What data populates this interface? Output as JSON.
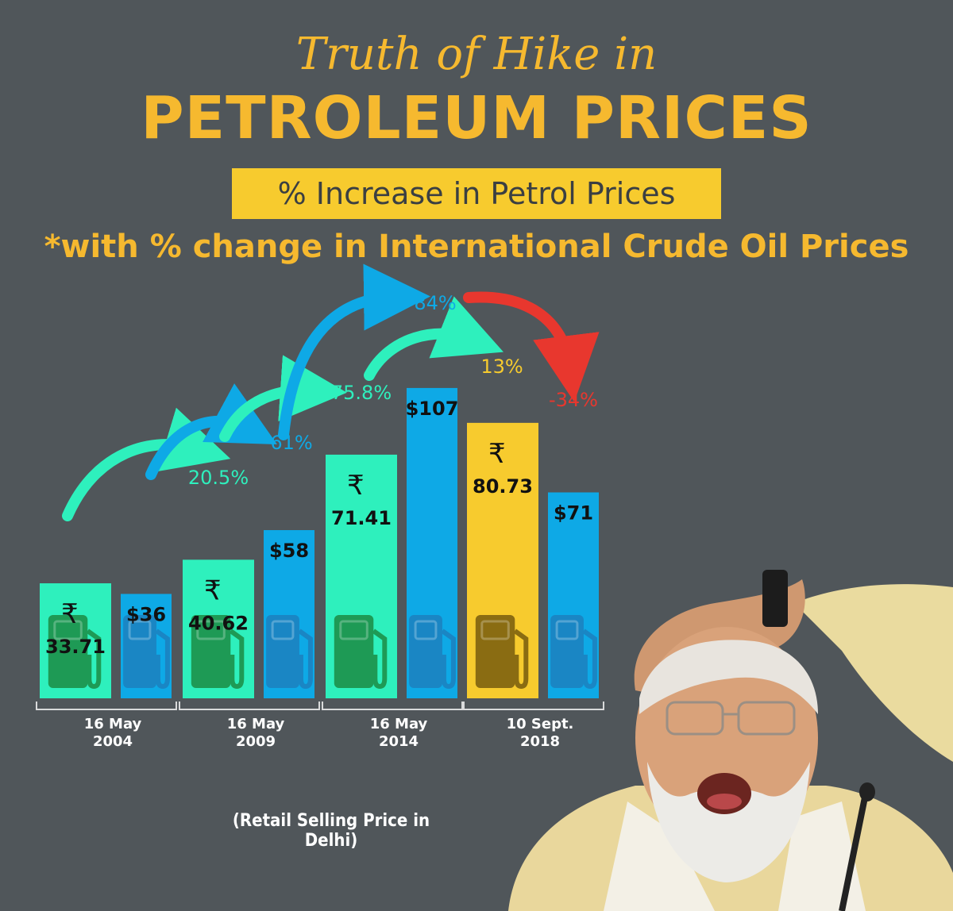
{
  "header": {
    "title_line1": "Truth of Hike in",
    "title_line2": "PETROLEUM PRICES",
    "subtitle": "% Increase in Petrol Prices",
    "subtitle2": "*with % change in International Crude Oil Prices"
  },
  "footnote": "(Retail Selling Price in Delhi)",
  "colors": {
    "background": "#50565a",
    "petrol_bar": "#2ef0bd",
    "petrol_bar_2018": "#f7cb2e",
    "crude_bar": "#0ea9e6",
    "arrow_green": "#2ef0bd",
    "arrow_blue": "#0ea9e6",
    "arrow_red": "#e8372e",
    "title": "#f6b92f"
  },
  "chart_data": {
    "type": "bar",
    "categories": [
      "16 May\n2004",
      "16 May\n2009",
      "16 May\n2014",
      "10 Sept.\n2018"
    ],
    "series": [
      {
        "values": [
          33.71,
          40.62,
          71.41,
          80.73
        ],
        "labels": [
          "33.71",
          "40.62",
          "71.41",
          "80.73"
        ],
        "currency": "₹",
        "pct_labels": [
          "",
          "20.5%",
          "75.8%",
          "13%"
        ]
      },
      {
        "values": [
          36,
          58,
          107,
          71
        ],
        "labels": [
          "$36",
          "$58",
          "$107",
          "$71"
        ],
        "pct_labels": [
          "",
          "61%",
          "84%",
          "-34%"
        ]
      }
    ],
    "icon": "fuel-pump-icon"
  }
}
